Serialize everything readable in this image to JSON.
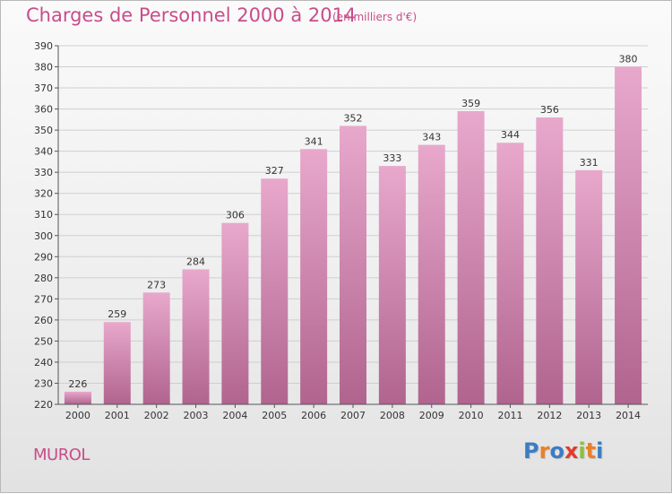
{
  "title": "Charges de Personnel 2000 à 2014",
  "subtitle": "(en milliers d'€)",
  "commune": "MUROL",
  "logo": {
    "text": "Proxiti",
    "letters": [
      {
        "char": "P",
        "color": "#3b7dc4"
      },
      {
        "char": "r",
        "color": "#e8812a"
      },
      {
        "char": "o",
        "color": "#3b7dc4"
      },
      {
        "char": "x",
        "color": "#e33a2e"
      },
      {
        "char": "i",
        "color": "#8cbf3f"
      },
      {
        "char": "t",
        "color": "#e8812a"
      },
      {
        "char": "i",
        "color": "#3b7dc4"
      }
    ]
  },
  "colors": {
    "title": "#c84d8a",
    "bar_top": "#e8a8cc",
    "bar_bottom": "#b0648e",
    "grid": "#cfcfcf",
    "axis": "#555555",
    "label": "#333333"
  },
  "chart_data": {
    "type": "bar",
    "title": "Charges de Personnel 2000 à 2014",
    "categories": [
      "2000",
      "2001",
      "2002",
      "2003",
      "2004",
      "2005",
      "2006",
      "2007",
      "2008",
      "2009",
      "2010",
      "2011",
      "2012",
      "2013",
      "2014"
    ],
    "values": [
      226,
      259,
      273,
      284,
      306,
      327,
      341,
      352,
      333,
      343,
      359,
      344,
      356,
      331,
      380
    ],
    "ylim": [
      220,
      390
    ],
    "ytick_step": 10,
    "grid": true,
    "data_labels": true
  }
}
